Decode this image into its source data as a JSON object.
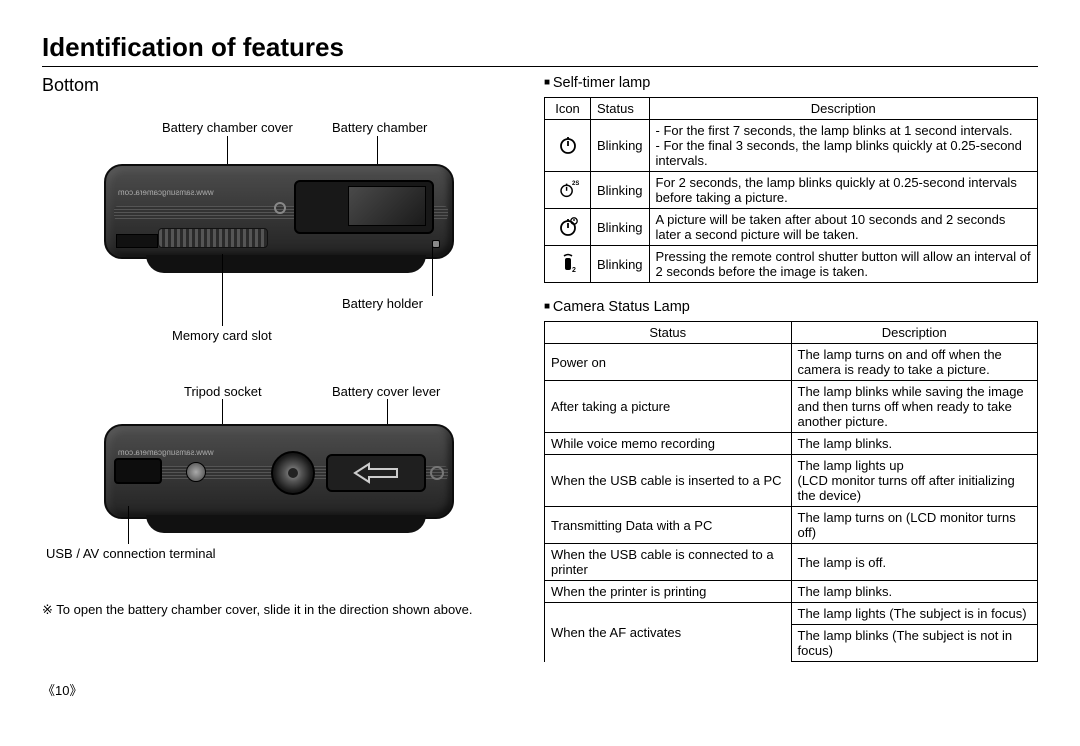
{
  "page": {
    "title": "Identification of features",
    "number": "《10》"
  },
  "left": {
    "heading": "Bottom",
    "labels": {
      "batteryChamberCover": "Battery chamber cover",
      "batteryChamber": "Battery chamber",
      "batteryHolder": "Battery holder",
      "memoryCardSlot": "Memory card slot",
      "tripodSocket": "Tripod socket",
      "batteryCoverLever": "Battery cover lever",
      "usbAv": "USB / AV connection terminal"
    },
    "camUrl": "www.samsungcamera.com",
    "footnote": "※ To open the battery chamber cover, slide it in the direction shown above."
  },
  "right": {
    "selfTimer": {
      "heading": "Self-timer lamp",
      "headers": {
        "icon": "Icon",
        "status": "Status",
        "desc": "Description"
      },
      "rows": [
        {
          "icon": "timer10",
          "status": "Blinking",
          "desc": "- For the first 7 seconds, the lamp blinks at 1 second intervals.\n- For the final 3 seconds, the lamp blinks quickly at 0.25-second intervals."
        },
        {
          "icon": "timer2s",
          "status": "Blinking",
          "desc": "For 2 seconds, the lamp blinks quickly at 0.25-second intervals before taking a picture."
        },
        {
          "icon": "timerDouble",
          "status": "Blinking",
          "desc": "A picture will be taken after about 10 seconds and 2 seconds later a second picture will be taken."
        },
        {
          "icon": "remote2",
          "status": "Blinking",
          "desc": "Pressing the remote control shutter button will allow an interval of 2 seconds before the image is taken."
        }
      ]
    },
    "statusLamp": {
      "heading": "Camera Status Lamp",
      "headers": {
        "status": "Status",
        "desc": "Description"
      },
      "rows": [
        {
          "status": "Power on",
          "desc": "The lamp turns on and off when the camera is ready to take a picture."
        },
        {
          "status": "After taking a picture",
          "desc": "The lamp blinks while saving the image and then turns off when ready to take another picture."
        },
        {
          "status": "While voice memo recording",
          "desc": "The lamp blinks."
        },
        {
          "status": "When the USB cable is inserted to a PC",
          "desc": "The lamp lights up\n(LCD monitor turns off after initializing the device)"
        },
        {
          "status": "Transmitting Data with a PC",
          "desc": "The lamp turns on (LCD monitor turns off)"
        },
        {
          "status": "When the USB cable is connected to a printer",
          "desc": "The lamp is off."
        },
        {
          "status": "When the printer is printing",
          "desc": "The lamp blinks."
        }
      ],
      "afRow": {
        "status": "When the AF activates",
        "desc1": "The lamp lights (The subject is in focus)",
        "desc2": "The lamp blinks (The subject is not in focus)"
      }
    }
  }
}
